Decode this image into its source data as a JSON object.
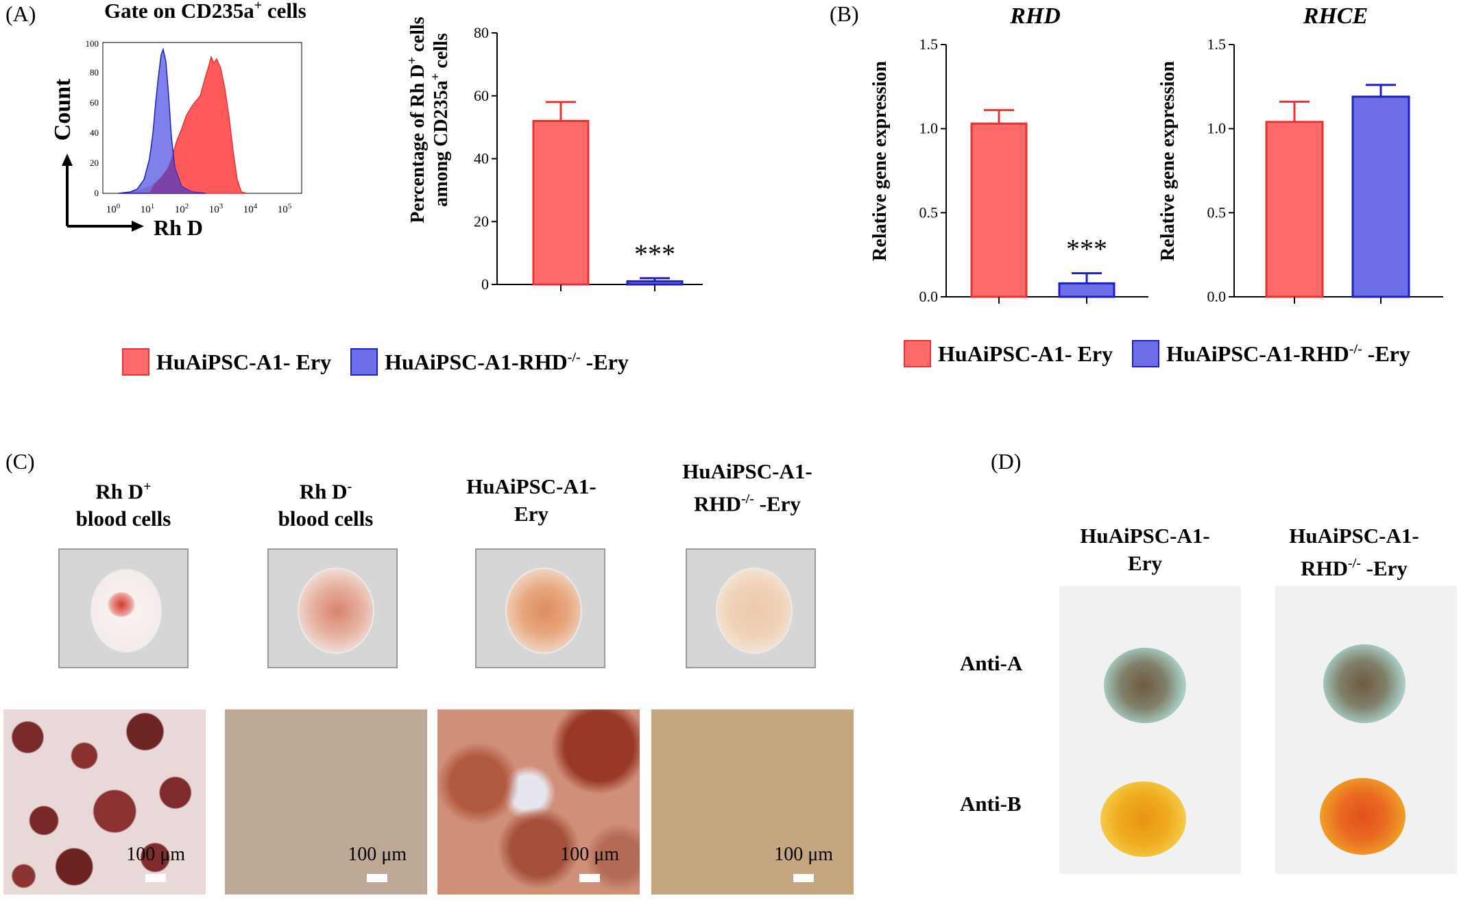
{
  "panels": {
    "a": "(A)",
    "b": "(B)",
    "c": "(C)",
    "d": "(D)"
  },
  "colors": {
    "red_fill": "#ff6b6b",
    "red_edge": "#e63232",
    "blue_fill": "#6e6ee8",
    "blue_edge": "#1f1fbf",
    "overlap": "#7a3fa0"
  },
  "legend": {
    "red_label": "HuAiPSC-A1- Ery",
    "blue_label": "HuAiPSC-A1-RHD",
    "blue_sup": "-/-",
    "blue_tail": " -Ery"
  },
  "histogram": {
    "title": "Gate on CD235a",
    "title_sup": "+",
    "title_tail": " cells",
    "xlabel": "Rh D",
    "ylabel": "Count",
    "y_ticks": [
      "0",
      "20",
      "40",
      "60",
      "80",
      "100"
    ],
    "x_ticks": [
      {
        "base": "10",
        "exp": "0"
      },
      {
        "base": "10",
        "exp": "1"
      },
      {
        "base": "10",
        "exp": "2"
      },
      {
        "base": "10",
        "exp": "3"
      },
      {
        "base": "10",
        "exp": "4"
      },
      {
        "base": "10",
        "exp": "5"
      }
    ]
  },
  "chart_data": [
    {
      "type": "bar",
      "ylabel_line1": "Percentage of Rh D",
      "ylabel_line1_sup": "+",
      "ylabel_line1_tail": " cells",
      "ylabel_line2": "among CD235a",
      "ylabel_line2_sup": "+",
      "ylabel_line2_tail": " cells",
      "ylim": [
        0,
        80
      ],
      "y_ticks": [
        "0",
        "20",
        "40",
        "60",
        "80"
      ],
      "categories": [
        "HuAiPSC-A1- Ery",
        "HuAiPSC-A1-RHD-/- -Ery"
      ],
      "values": [
        52,
        1
      ],
      "errors": [
        6,
        1
      ],
      "significance": "***"
    },
    {
      "type": "bar",
      "title": "RHD",
      "ylabel": "Relative gene expression",
      "ylim": [
        0,
        1.5
      ],
      "y_ticks": [
        "0.0",
        "0.5",
        "1.0",
        "1.5"
      ],
      "categories": [
        "HuAiPSC-A1- Ery",
        "HuAiPSC-A1-RHD-/- -Ery"
      ],
      "values": [
        1.03,
        0.08
      ],
      "errors": [
        0.08,
        0.06
      ],
      "significance": "***"
    },
    {
      "type": "bar",
      "title": "RHCE",
      "ylabel": "Relative gene expression",
      "ylim": [
        0,
        1.5
      ],
      "y_ticks": [
        "0.0",
        "0.5",
        "1.0",
        "1.5"
      ],
      "categories": [
        "HuAiPSC-A1- Ery",
        "HuAiPSC-A1-RHD-/- -Ery"
      ],
      "values": [
        1.04,
        1.19
      ],
      "errors": [
        0.12,
        0.07
      ]
    }
  ],
  "panel_c": {
    "titles": [
      {
        "l1": "Rh D",
        "l1_sup": "+",
        "l2": "blood cells"
      },
      {
        "l1": "Rh D",
        "l1_sup": "-",
        "l2": "blood cells"
      },
      {
        "l1": "HuAiPSC-A1-",
        "l1_sup": "",
        "l2": "Ery"
      },
      {
        "l1": "HuAiPSC-A1-",
        "l1_sup": "",
        "l2": "RHD",
        "l2_sup": "-/-",
        "l2_tail": " -Ery"
      }
    ],
    "scale_label": "100 μm"
  },
  "panel_d": {
    "col1": {
      "l1": "HuAiPSC-A1-",
      "l2": "Ery"
    },
    "col2": {
      "l1": "HuAiPSC-A1-",
      "l2": "RHD",
      "l2_sup": "-/-",
      "l2_tail": " -Ery"
    },
    "row1": "Anti-A",
    "row2": "Anti-B"
  }
}
